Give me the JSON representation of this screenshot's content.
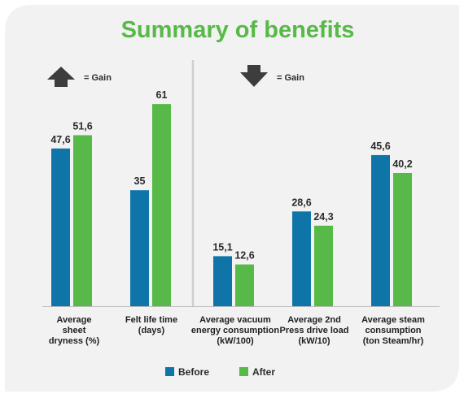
{
  "chart_data": {
    "type": "bar",
    "title": "Summary of benefits",
    "categories": [
      [
        "Average",
        "sheet",
        "dryness (%)"
      ],
      [
        "Felt life time",
        "(days)"
      ],
      [
        "Average vacuum",
        "energy consumption",
        "(kW/100)"
      ],
      [
        "Average 2nd",
        "Press drive load",
        "(kW/10)"
      ],
      [
        "Average steam",
        "consumption",
        "(ton Steam/hr)"
      ]
    ],
    "series": [
      {
        "name": "Before",
        "color": "#0f74a8",
        "values": [
          47.6,
          35,
          15.1,
          28.6,
          45.6
        ],
        "labels": [
          "47,6",
          "35",
          "15,1",
          "28,6",
          "45,6"
        ]
      },
      {
        "name": "After",
        "color": "#57b947",
        "values": [
          51.6,
          61,
          12.6,
          24.3,
          40.2
        ],
        "labels": [
          "51,6",
          "61",
          "12,6",
          "24,3",
          "40,2"
        ]
      }
    ],
    "ylim": [
      0,
      70
    ],
    "grid": false,
    "legend": "bottom-center",
    "annotations": [
      {
        "icon": "up-arrow-icon",
        "text": "= Gain"
      },
      {
        "icon": "down-arrow-icon",
        "text": "= Gain"
      }
    ]
  }
}
